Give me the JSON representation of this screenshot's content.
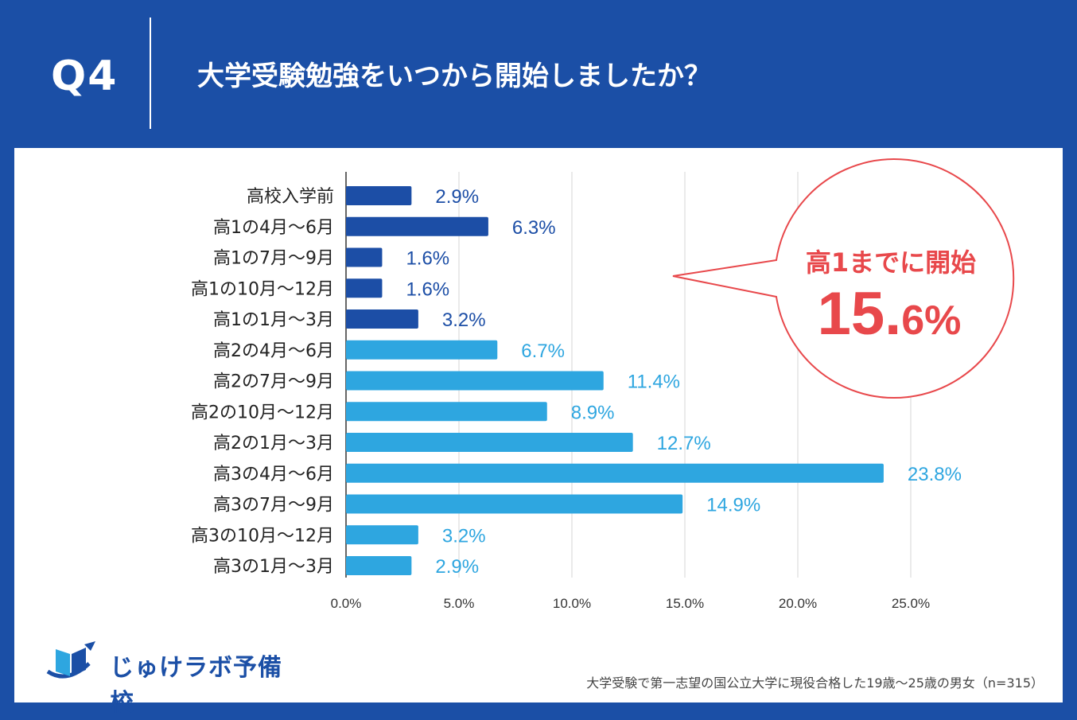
{
  "header": {
    "question_number": "Q4",
    "question_title": "大学受験勉強をいつから開始しましたか？"
  },
  "colors": {
    "background": "#1b4fa6",
    "dark_bar": "#1c4ea6",
    "light_bar": "#2ea6e0",
    "callout": "#e8484b"
  },
  "chart_data": {
    "type": "bar",
    "orientation": "horizontal",
    "categories": [
      "高校入学前",
      "高1の4月～6月",
      "高1の7月～9月",
      "高1の10月～12月",
      "高1の1月～3月",
      "高2の4月～6月",
      "高2の7月～9月",
      "高2の10月～12月",
      "高2の1月～3月",
      "高3の4月～6月",
      "高3の7月～9月",
      "高3の10月～12月",
      "高3の1月～3月"
    ],
    "values": [
      2.9,
      6.3,
      1.6,
      1.6,
      3.2,
      6.7,
      11.4,
      8.9,
      12.7,
      23.8,
      14.9,
      3.2,
      2.9
    ],
    "value_labels": [
      "2.9%",
      "6.3%",
      "1.6%",
      "1.6%",
      "3.2%",
      "6.7%",
      "11.4%",
      "8.9%",
      "12.7%",
      "23.8%",
      "14.9%",
      "3.2%",
      "2.9%"
    ],
    "groups": [
      "dark",
      "dark",
      "dark",
      "dark",
      "dark",
      "light",
      "light",
      "light",
      "light",
      "light",
      "light",
      "light",
      "light"
    ],
    "xlim": [
      0,
      25
    ],
    "xticks": [
      0,
      5,
      10,
      15,
      20,
      25
    ],
    "xtick_labels": [
      "0.0%",
      "5.0%",
      "10.0%",
      "15.0%",
      "20.0%",
      "25.0%"
    ],
    "grid": true
  },
  "callout": {
    "line1": "高1までに開始",
    "value_int": "15.",
    "value_dec": "6%"
  },
  "logo": {
    "text": "じゅけラボ予備校"
  },
  "footnote": "大学受験で第一志望の国公立大学に現役合格した19歳～25歳の男女（n=315）"
}
